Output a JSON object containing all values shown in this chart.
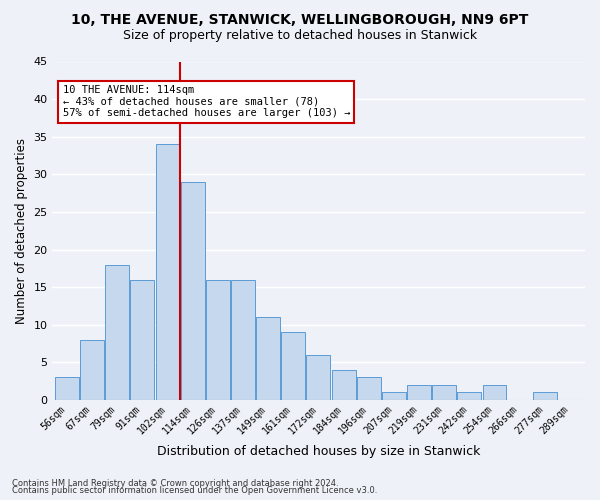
{
  "title1": "10, THE AVENUE, STANWICK, WELLINGBOROUGH, NN9 6PT",
  "title2": "Size of property relative to detached houses in Stanwick",
  "xlabel": "Distribution of detached houses by size in Stanwick",
  "ylabel": "Number of detached properties",
  "categories": [
    "56sqm",
    "67sqm",
    "79sqm",
    "91sqm",
    "102sqm",
    "114sqm",
    "126sqm",
    "137sqm",
    "149sqm",
    "161sqm",
    "172sqm",
    "184sqm",
    "196sqm",
    "207sqm",
    "219sqm",
    "231sqm",
    "242sqm",
    "254sqm",
    "266sqm",
    "277sqm",
    "289sqm"
  ],
  "values": [
    3,
    8,
    18,
    16,
    34,
    29,
    16,
    16,
    11,
    9,
    6,
    4,
    3,
    1,
    2,
    2,
    1,
    2,
    0,
    1,
    0
  ],
  "bar_color": "#c5d8ed",
  "bar_edge_color": "#5b9bd5",
  "annotation_line1": "10 THE AVENUE: 114sqm",
  "annotation_line2": "← 43% of detached houses are smaller (78)",
  "annotation_line3": "57% of semi-detached houses are larger (103) →",
  "annotation_box_color": "#ffffff",
  "annotation_box_edge": "#cc0000",
  "vline_color": "#cc0000",
  "footnote1": "Contains HM Land Registry data © Crown copyright and database right 2024.",
  "footnote2": "Contains public sector information licensed under the Open Government Licence v3.0.",
  "ylim": [
    0,
    45
  ],
  "yticks": [
    0,
    5,
    10,
    15,
    20,
    25,
    30,
    35,
    40,
    45
  ],
  "background_color": "#eef2f8",
  "grid_color": "#ffffff",
  "title1_fontsize": 10,
  "title2_fontsize": 9
}
